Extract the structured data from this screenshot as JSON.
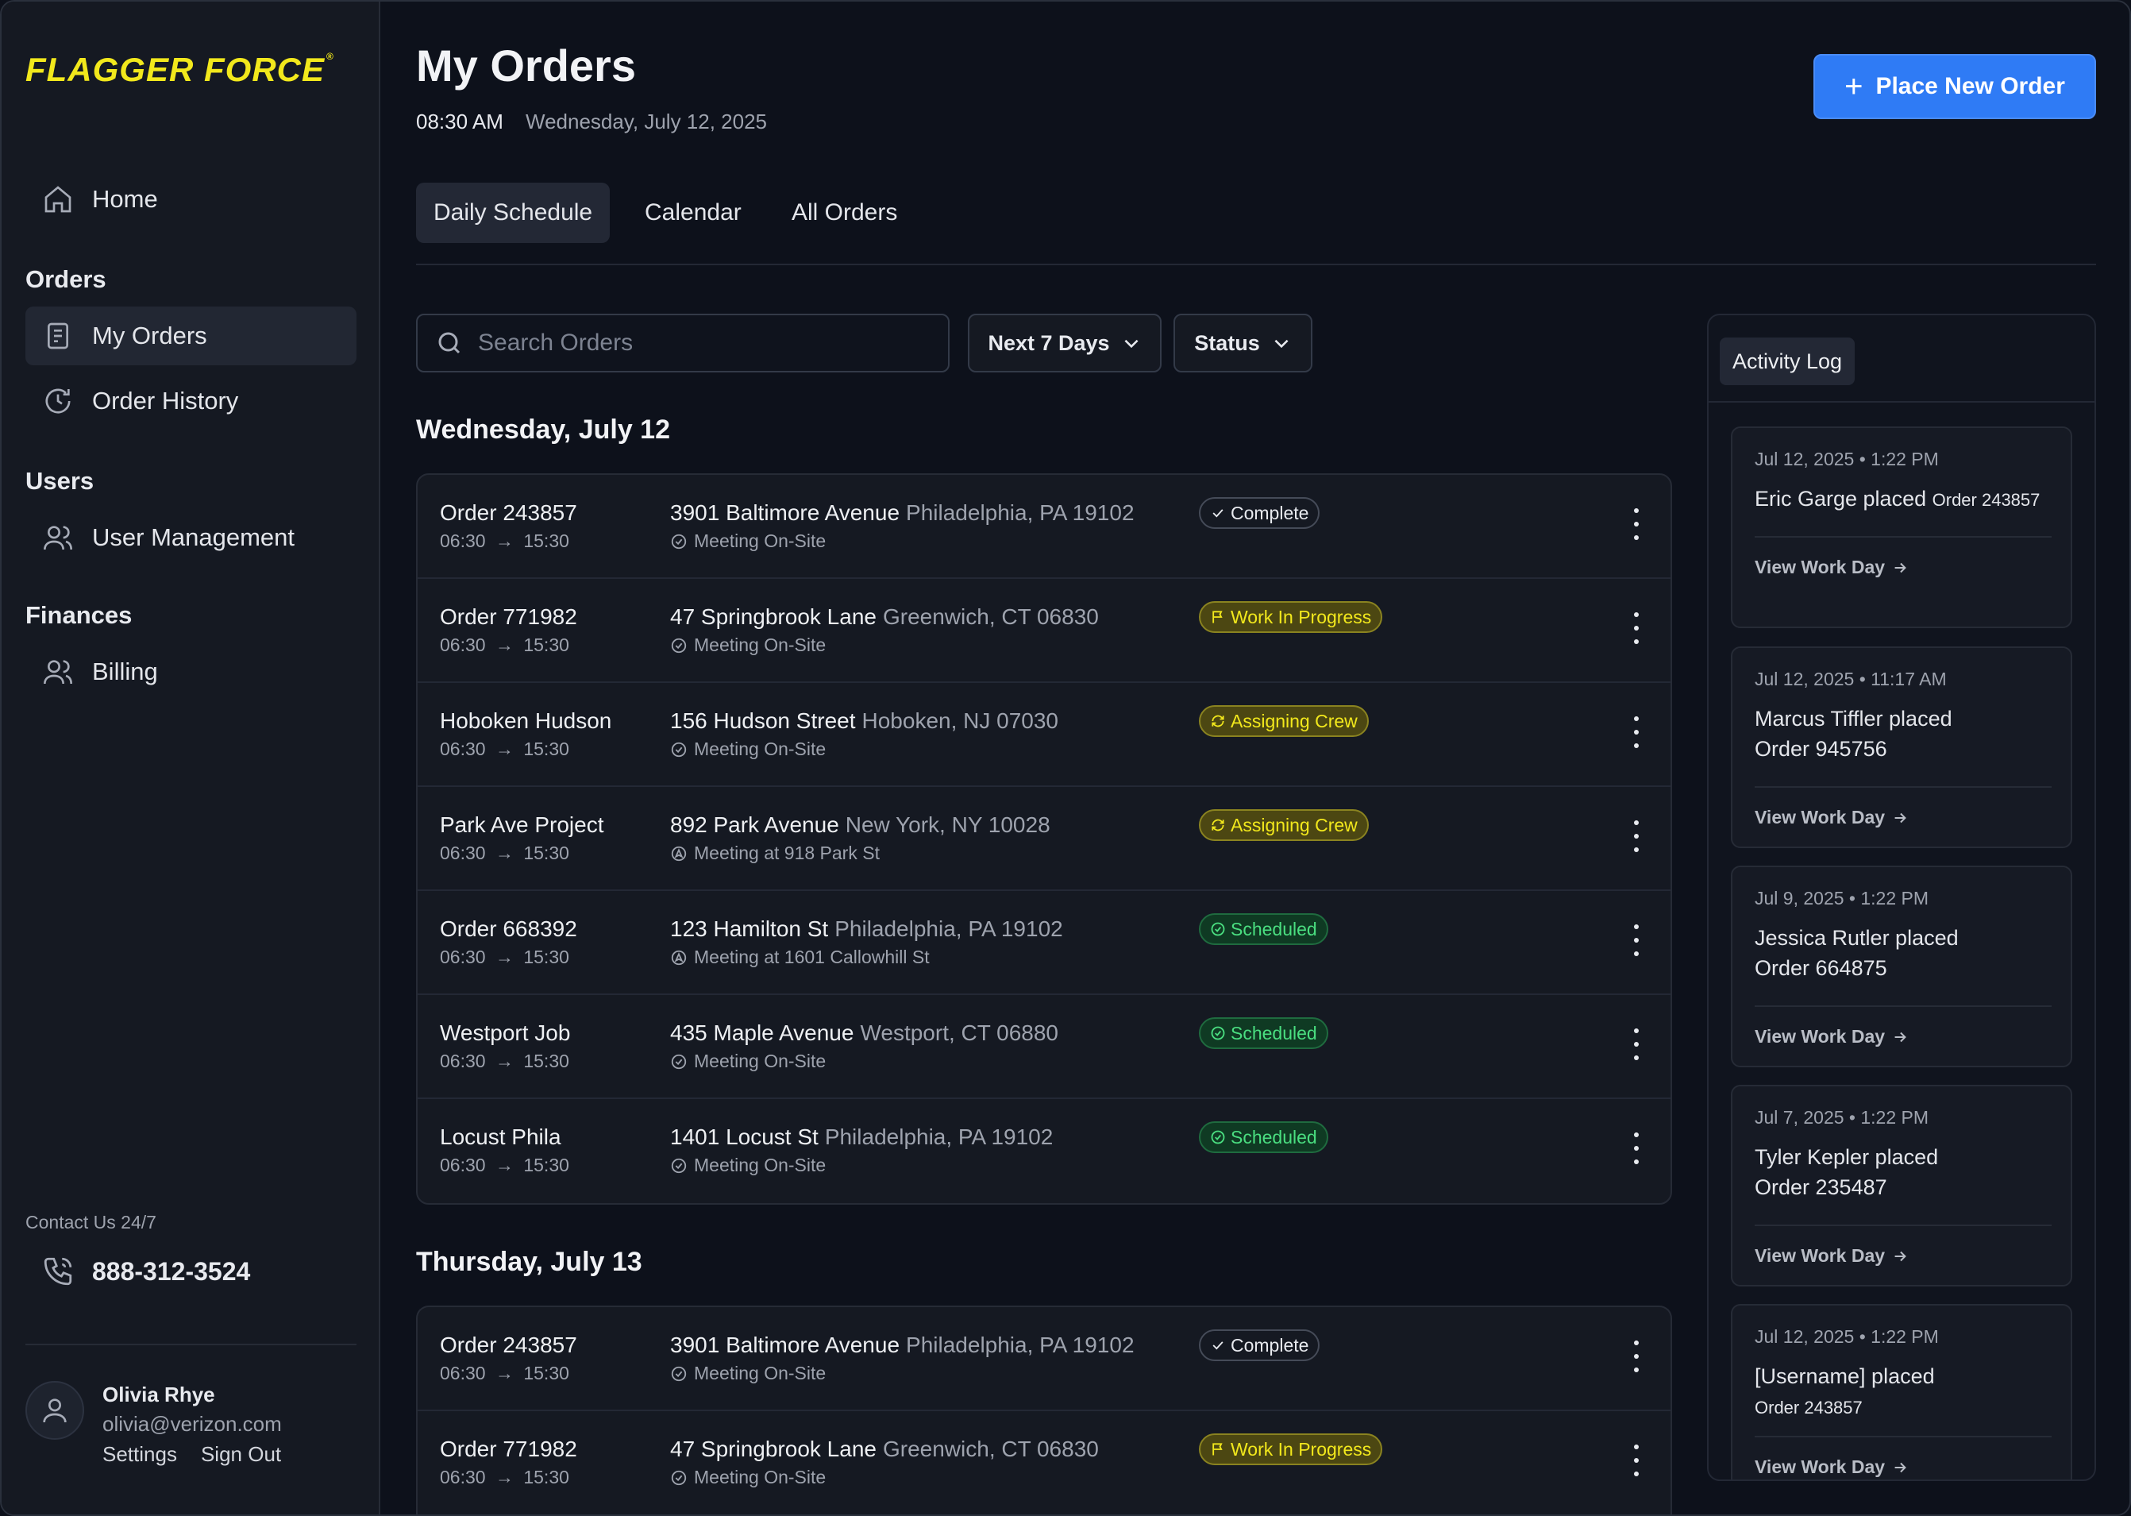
{
  "brand": {
    "logo_text": "FLAGGER FORCE",
    "logo_mark": "®",
    "accent_color": "#f2e81c",
    "primary_color": "#2f7bf5"
  },
  "sidebar": {
    "home": {
      "label": "Home",
      "icon": "home-icon"
    },
    "orders_section": "Orders",
    "my_orders": {
      "label": "My Orders",
      "icon": "document-icon"
    },
    "order_history": {
      "label": "Order History",
      "icon": "history-icon"
    },
    "users_section": "Users",
    "user_management": {
      "label": "User Management",
      "icon": "users-icon"
    },
    "finances_section": "Finances",
    "billing": {
      "label": "Billing",
      "icon": "users-icon"
    },
    "contact_label": "Contact Us 24/7",
    "phone": "888-312-3524",
    "user": {
      "name": "Olivia Rhye",
      "email": "olivia@verizon.com",
      "settings": "Settings",
      "sign_out": "Sign Out"
    }
  },
  "header": {
    "title": "My Orders",
    "time": "08:30 AM",
    "date": "Wednesday, July 12, 2025",
    "new_order_button": "Place New Order",
    "tabs": [
      "Daily Schedule",
      "Calendar",
      "All Orders"
    ],
    "active_tab": "Daily Schedule"
  },
  "filters": {
    "search_placeholder": "Search Orders",
    "range": "Next 7 Days",
    "status": "Status"
  },
  "days": [
    {
      "heading": "Wednesday, July 12",
      "orders": [
        {
          "name": "Order 243857",
          "start": "06:30",
          "end": "15:30",
          "street": "3901 Baltimore Avenue",
          "city": "Philadelphia, PA 19102",
          "meeting": "Meeting On-Site",
          "meeting_icon": "check-circle-icon",
          "status": "Complete",
          "status_kind": "complete"
        },
        {
          "name": "Order 771982",
          "start": "06:30",
          "end": "15:30",
          "street": "47 Springbrook Lane",
          "city": "Greenwich, CT 06830",
          "meeting": "Meeting On-Site",
          "meeting_icon": "check-circle-icon",
          "status": "Work In Progress",
          "status_kind": "wip"
        },
        {
          "name": "Hoboken Hudson",
          "start": "06:30",
          "end": "15:30",
          "street": "156 Hudson Street",
          "city": "Hoboken, NJ 07030",
          "meeting": "Meeting On-Site",
          "meeting_icon": "check-circle-icon",
          "status": "Assigning Crew",
          "status_kind": "assign"
        },
        {
          "name": "Park Ave Project",
          "start": "06:30",
          "end": "15:30",
          "street": "892 Park Avenue",
          "city": "New York, NY 10028",
          "meeting": "Meeting at 918 Park St",
          "meeting_icon": "navigation-icon",
          "status": "Assigning Crew",
          "status_kind": "assign"
        },
        {
          "name": "Order 668392",
          "start": "06:30",
          "end": "15:30",
          "street": "123 Hamilton St",
          "city": "Philadelphia, PA 19102",
          "meeting": "Meeting at 1601 Callowhill St",
          "meeting_icon": "navigation-icon",
          "status": "Scheduled",
          "status_kind": "sched"
        },
        {
          "name": "Westport Job",
          "start": "06:30",
          "end": "15:30",
          "street": "435 Maple Avenue",
          "city": "Westport, CT 06880",
          "meeting": "Meeting On-Site",
          "meeting_icon": "check-circle-icon",
          "status": "Scheduled",
          "status_kind": "sched"
        },
        {
          "name": "Locust Phila",
          "start": "06:30",
          "end": "15:30",
          "street": "1401 Locust St",
          "city": "Philadelphia, PA 19102",
          "meeting": "Meeting On-Site",
          "meeting_icon": "check-circle-icon",
          "status": "Scheduled",
          "status_kind": "sched"
        }
      ]
    },
    {
      "heading": "Thursday, July 13",
      "orders": [
        {
          "name": "Order 243857",
          "start": "06:30",
          "end": "15:30",
          "street": "3901 Baltimore Avenue",
          "city": "Philadelphia, PA 19102",
          "meeting": "Meeting On-Site",
          "meeting_icon": "check-circle-icon",
          "status": "Complete",
          "status_kind": "complete"
        },
        {
          "name": "Order 771982",
          "start": "06:30",
          "end": "15:30",
          "street": "47 Springbrook Lane",
          "city": "Greenwich, CT 06830",
          "meeting": "Meeting On-Site",
          "meeting_icon": "check-circle-icon",
          "status": "Work In Progress",
          "status_kind": "wip"
        }
      ]
    }
  ],
  "activity_log": {
    "tab": "Activity Log",
    "link_label": "View Work Day",
    "items": [
      {
        "date": "Jul 12, 2025 • 1:22 PM",
        "user": "Eric Garge placed",
        "order": "Order 243857",
        "order_small": true
      },
      {
        "date": "Jul 12, 2025 • 11:17 AM",
        "user": "Marcus Tiffler placed",
        "order": "Order 945756",
        "order_small": false
      },
      {
        "date": "Jul 9, 2025 • 1:22 PM",
        "user": "Jessica Rutler placed",
        "order": "Order 664875",
        "order_small": false
      },
      {
        "date": "Jul 7, 2025 • 1:22 PM",
        "user": "Tyler Kepler placed",
        "order": "Order 235487",
        "order_small": false
      },
      {
        "date": "Jul 12, 2025 • 1:22 PM",
        "user": "[Username] placed",
        "order": "Order 243857",
        "order_small": true
      }
    ]
  }
}
